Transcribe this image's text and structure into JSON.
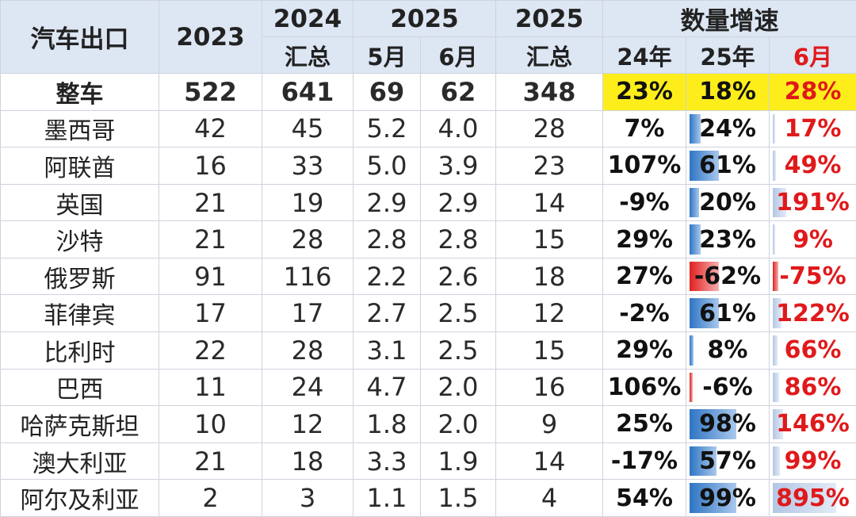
{
  "header": {
    "col_name": "汽车出口",
    "col_2023": "2023",
    "col_2024_top": "2024",
    "col_2024_bottom": "汇总",
    "col_2025_top": "2025",
    "col_may": "5月",
    "col_jun": "6月",
    "col_2025sum_top": "2025",
    "col_2025sum_bottom": "汇总",
    "col_growth": "数量增速",
    "col_g24": "24年",
    "col_g25": "25年",
    "col_g6": "6月"
  },
  "colors": {
    "highlight": "#fdee1b",
    "header_bg": "#dde6f3",
    "red_text": "#e0191b",
    "bar_blue": "#2e75c4",
    "bar_red": "#e02020"
  },
  "rows": [
    {
      "name": "整车",
      "y2023": "522",
      "y2024": "641",
      "may": "69",
      "jun": "62",
      "y2025": "348",
      "g24": "23%",
      "g25": "18%",
      "g6": "28%",
      "v25": 18,
      "v6": 28
    },
    {
      "name": "墨西哥",
      "y2023": "42",
      "y2024": "45",
      "may": "5.2",
      "jun": "4.0",
      "y2025": "28",
      "g24": "7%",
      "g25": "24%",
      "g6": "17%",
      "v25": 24,
      "v6": 17
    },
    {
      "name": "阿联酋",
      "y2023": "16",
      "y2024": "33",
      "may": "5.0",
      "jun": "3.9",
      "y2025": "23",
      "g24": "107%",
      "g25": "61%",
      "g6": "49%",
      "v25": 61,
      "v6": 49
    },
    {
      "name": "英国",
      "y2023": "21",
      "y2024": "19",
      "may": "2.9",
      "jun": "2.9",
      "y2025": "14",
      "g24": "-9%",
      "g25": "20%",
      "g6": "191%",
      "v25": 20,
      "v6": 191
    },
    {
      "name": "沙特",
      "y2023": "21",
      "y2024": "28",
      "may": "2.8",
      "jun": "2.8",
      "y2025": "15",
      "g24": "29%",
      "g25": "23%",
      "g6": "9%",
      "v25": 23,
      "v6": 9
    },
    {
      "name": "俄罗斯",
      "y2023": "91",
      "y2024": "116",
      "may": "2.2",
      "jun": "2.6",
      "y2025": "18",
      "g24": "27%",
      "g25": "-62%",
      "g6": "-75%",
      "v25": -62,
      "v6": -75
    },
    {
      "name": "菲律宾",
      "y2023": "17",
      "y2024": "17",
      "may": "2.7",
      "jun": "2.5",
      "y2025": "12",
      "g24": "-2%",
      "g25": "61%",
      "g6": "122%",
      "v25": 61,
      "v6": 122
    },
    {
      "name": "比利时",
      "y2023": "22",
      "y2024": "28",
      "may": "3.1",
      "jun": "2.5",
      "y2025": "15",
      "g24": "29%",
      "g25": "8%",
      "g6": "66%",
      "v25": 8,
      "v6": 66
    },
    {
      "name": "巴西",
      "y2023": "11",
      "y2024": "24",
      "may": "4.7",
      "jun": "2.0",
      "y2025": "16",
      "g24": "106%",
      "g25": "-6%",
      "g6": "86%",
      "v25": -6,
      "v6": 86
    },
    {
      "name": "哈萨克斯坦",
      "y2023": "10",
      "y2024": "12",
      "may": "1.8",
      "jun": "2.0",
      "y2025": "9",
      "g24": "25%",
      "g25": "98%",
      "g6": "146%",
      "v25": 98,
      "v6": 146
    },
    {
      "name": "澳大利亚",
      "y2023": "21",
      "y2024": "18",
      "may": "3.3",
      "jun": "1.9",
      "y2025": "14",
      "g24": "-17%",
      "g25": "57%",
      "g6": "99%",
      "v25": 57,
      "v6": 99
    },
    {
      "name": "阿尔及利亚",
      "y2023": "2",
      "y2024": "3",
      "may": "1.1",
      "jun": "1.5",
      "y2025": "4",
      "g24": "54%",
      "g25": "99%",
      "g6": "895%",
      "v25": 99,
      "v6": 895
    }
  ]
}
